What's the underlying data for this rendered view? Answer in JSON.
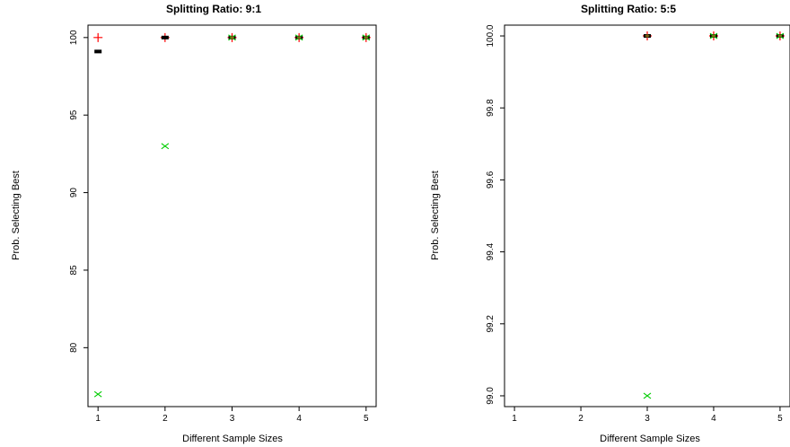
{
  "chart_data": [
    {
      "type": "scatter",
      "title": "Splitting Ratio: 9:1",
      "xlabel": "Different Sample Sizes",
      "ylabel": "Prob. Selecting Best",
      "x_ticks": [
        "1",
        "2",
        "3",
        "4",
        "5"
      ],
      "y_ticks": [
        "80",
        "85",
        "90",
        "95",
        "100"
      ],
      "xlim": [
        0.85,
        5.15
      ],
      "ylim": [
        76.2,
        100.8
      ],
      "series": [
        {
          "marker": "plus",
          "color": "#ff0000",
          "points": [
            [
              1,
              100
            ],
            [
              2,
              100
            ],
            [
              3,
              100
            ],
            [
              4,
              100
            ],
            [
              5,
              100
            ]
          ]
        },
        {
          "marker": "square",
          "color": "#000000",
          "points": [
            [
              1,
              99.1
            ],
            [
              2,
              100
            ],
            [
              3,
              100
            ],
            [
              4,
              100
            ],
            [
              5,
              100
            ]
          ]
        },
        {
          "marker": "cross",
          "color": "#00cc00",
          "points": [
            [
              1,
              77
            ],
            [
              2,
              93
            ],
            [
              3,
              100
            ],
            [
              4,
              100
            ],
            [
              5,
              100
            ]
          ]
        },
        {
          "marker": "diamond",
          "color": "#8b6914",
          "points": [
            [
              3,
              100
            ],
            [
              4,
              100
            ],
            [
              5,
              100
            ]
          ]
        }
      ]
    },
    {
      "type": "scatter",
      "title": "Splitting Ratio: 5:5",
      "xlabel": "Different Sample Sizes",
      "ylabel": "Prob. Selecting Best",
      "x_ticks": [
        "1",
        "2",
        "3",
        "4",
        "5"
      ],
      "y_ticks": [
        "99.0",
        "99.2",
        "99.4",
        "99.6",
        "99.8",
        "100.0"
      ],
      "xlim": [
        0.85,
        5.15
      ],
      "ylim": [
        98.97,
        100.03
      ],
      "series": [
        {
          "marker": "plus",
          "color": "#ff0000",
          "points": [
            [
              3,
              100
            ],
            [
              4,
              100
            ],
            [
              5,
              100
            ]
          ]
        },
        {
          "marker": "square",
          "color": "#000000",
          "points": [
            [
              3,
              100
            ],
            [
              4,
              100
            ],
            [
              5,
              100
            ]
          ]
        },
        {
          "marker": "cross",
          "color": "#00cc00",
          "points": [
            [
              3,
              99.0
            ],
            [
              4,
              100
            ],
            [
              5,
              100
            ]
          ]
        },
        {
          "marker": "diamond",
          "color": "#8b6914",
          "points": [
            [
              3,
              100
            ],
            [
              4,
              100
            ],
            [
              5,
              100
            ]
          ]
        }
      ]
    }
  ]
}
